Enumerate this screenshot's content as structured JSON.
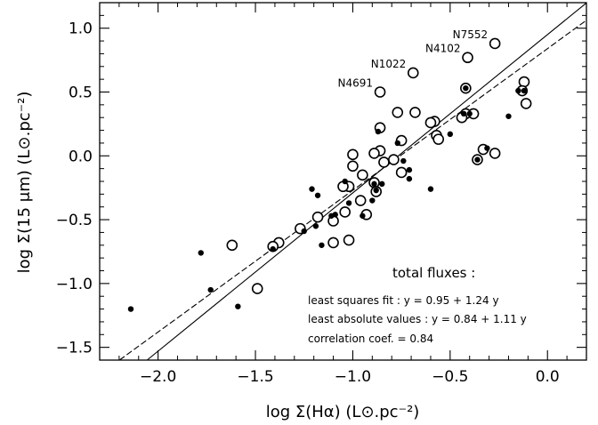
{
  "chart_data": {
    "type": "scatter",
    "xlabel": "log Σ(Hα) (L⊙.pc⁻²)",
    "ylabel": "log Σ(15 μm) (L⊙.pc⁻²)",
    "xlim": [
      -2.3,
      0.2
    ],
    "ylim": [
      -1.6,
      1.2
    ],
    "xticks": [
      -2.0,
      -1.5,
      -1.0,
      -0.5,
      0.0
    ],
    "xtick_labels": [
      "−2.0",
      "−1.5",
      "−1.0",
      "−0.5",
      "0.0"
    ],
    "yticks": [
      -1.5,
      -1.0,
      -0.5,
      0.0,
      0.5,
      1.0
    ],
    "ytick_labels": [
      "−1.5",
      "−1.0",
      "−0.5",
      "0.0",
      "0.5",
      "1.0"
    ],
    "grid": false,
    "series": [
      {
        "marker": "open-circle",
        "points": [
          [
            -0.27,
            0.88
          ],
          [
            -0.41,
            0.77
          ],
          [
            -0.69,
            0.65
          ],
          [
            -0.86,
            0.5
          ],
          [
            -0.12,
            0.58
          ],
          [
            -0.13,
            0.51
          ],
          [
            -0.42,
            0.53
          ],
          [
            -0.42,
            0.33
          ],
          [
            -0.38,
            0.33
          ],
          [
            -0.44,
            0.3
          ],
          [
            -0.11,
            0.41
          ],
          [
            -0.58,
            0.27
          ],
          [
            -0.6,
            0.26
          ],
          [
            -0.77,
            0.34
          ],
          [
            -0.68,
            0.34
          ],
          [
            -0.86,
            0.22
          ],
          [
            -0.57,
            0.16
          ],
          [
            -0.56,
            0.13
          ],
          [
            -0.75,
            0.12
          ],
          [
            -0.86,
            0.04
          ],
          [
            -0.89,
            0.02
          ],
          [
            -0.33,
            0.05
          ],
          [
            -0.27,
            0.02
          ],
          [
            -0.36,
            -0.03
          ],
          [
            -1.0,
            0.01
          ],
          [
            -0.84,
            -0.05
          ],
          [
            -0.79,
            -0.03
          ],
          [
            -0.75,
            -0.13
          ],
          [
            -1.0,
            -0.08
          ],
          [
            -0.95,
            -0.15
          ],
          [
            -0.89,
            -0.21
          ],
          [
            -0.88,
            -0.28
          ],
          [
            -1.02,
            -0.24
          ],
          [
            -1.05,
            -0.24
          ],
          [
            -0.96,
            -0.35
          ],
          [
            -0.93,
            -0.46
          ],
          [
            -1.04,
            -0.44
          ],
          [
            -1.18,
            -0.48
          ],
          [
            -1.1,
            -0.51
          ],
          [
            -1.27,
            -0.57
          ],
          [
            -1.38,
            -0.68
          ],
          [
            -1.41,
            -0.71
          ],
          [
            -1.1,
            -0.68
          ],
          [
            -1.02,
            -0.66
          ],
          [
            -1.62,
            -0.7
          ],
          [
            -1.49,
            -1.04
          ]
        ]
      },
      {
        "marker": "filled-dot",
        "points": [
          [
            -2.14,
            -1.2
          ],
          [
            -1.78,
            -0.76
          ],
          [
            -1.73,
            -1.05
          ],
          [
            -1.59,
            -1.18
          ],
          [
            -1.41,
            -0.73
          ],
          [
            -1.25,
            -0.59
          ],
          [
            -1.21,
            -0.26
          ],
          [
            -1.18,
            -0.31
          ],
          [
            -1.19,
            -0.55
          ],
          [
            -1.16,
            -0.7
          ],
          [
            -1.11,
            -0.47
          ],
          [
            -1.09,
            -0.46
          ],
          [
            -1.04,
            -0.2
          ],
          [
            -1.02,
            -0.37
          ],
          [
            -0.95,
            -0.47
          ],
          [
            -0.9,
            -0.35
          ],
          [
            -0.89,
            -0.22
          ],
          [
            -0.88,
            -0.27
          ],
          [
            -0.85,
            -0.22
          ],
          [
            -0.87,
            0.19
          ],
          [
            -0.77,
            0.1
          ],
          [
            -0.71,
            -0.11
          ],
          [
            -0.71,
            -0.18
          ],
          [
            -0.74,
            -0.04
          ],
          [
            -0.6,
            -0.26
          ],
          [
            -0.5,
            0.17
          ],
          [
            -0.43,
            0.33
          ],
          [
            -0.4,
            0.33
          ],
          [
            -0.31,
            0.06
          ],
          [
            -0.2,
            0.31
          ],
          [
            -0.15,
            0.51
          ],
          [
            -0.12,
            0.51
          ],
          [
            -0.36,
            -0.03
          ],
          [
            -0.42,
            0.53
          ]
        ]
      }
    ],
    "fit_lines": [
      {
        "name": "least squares fit",
        "intercept": 0.95,
        "slope": 1.24,
        "style": "solid"
      },
      {
        "name": "least absolute values",
        "intercept": 0.84,
        "slope": 1.11,
        "style": "dashed"
      }
    ],
    "point_labels": [
      {
        "text": "N7552",
        "x": -0.27,
        "y": 0.88
      },
      {
        "text": "N4102",
        "x": -0.41,
        "y": 0.77
      },
      {
        "text": "N1022",
        "x": -0.69,
        "y": 0.65
      },
      {
        "text": "N4691",
        "x": -0.86,
        "y": 0.5
      }
    ],
    "annotations": {
      "title": "total fluxes :",
      "lines": [
        "least squares fit : y = 0.95 + 1.24 y",
        "least absolute values : y = 0.84 + 1.11 y",
        "correlation coef. = 0.84"
      ]
    }
  }
}
